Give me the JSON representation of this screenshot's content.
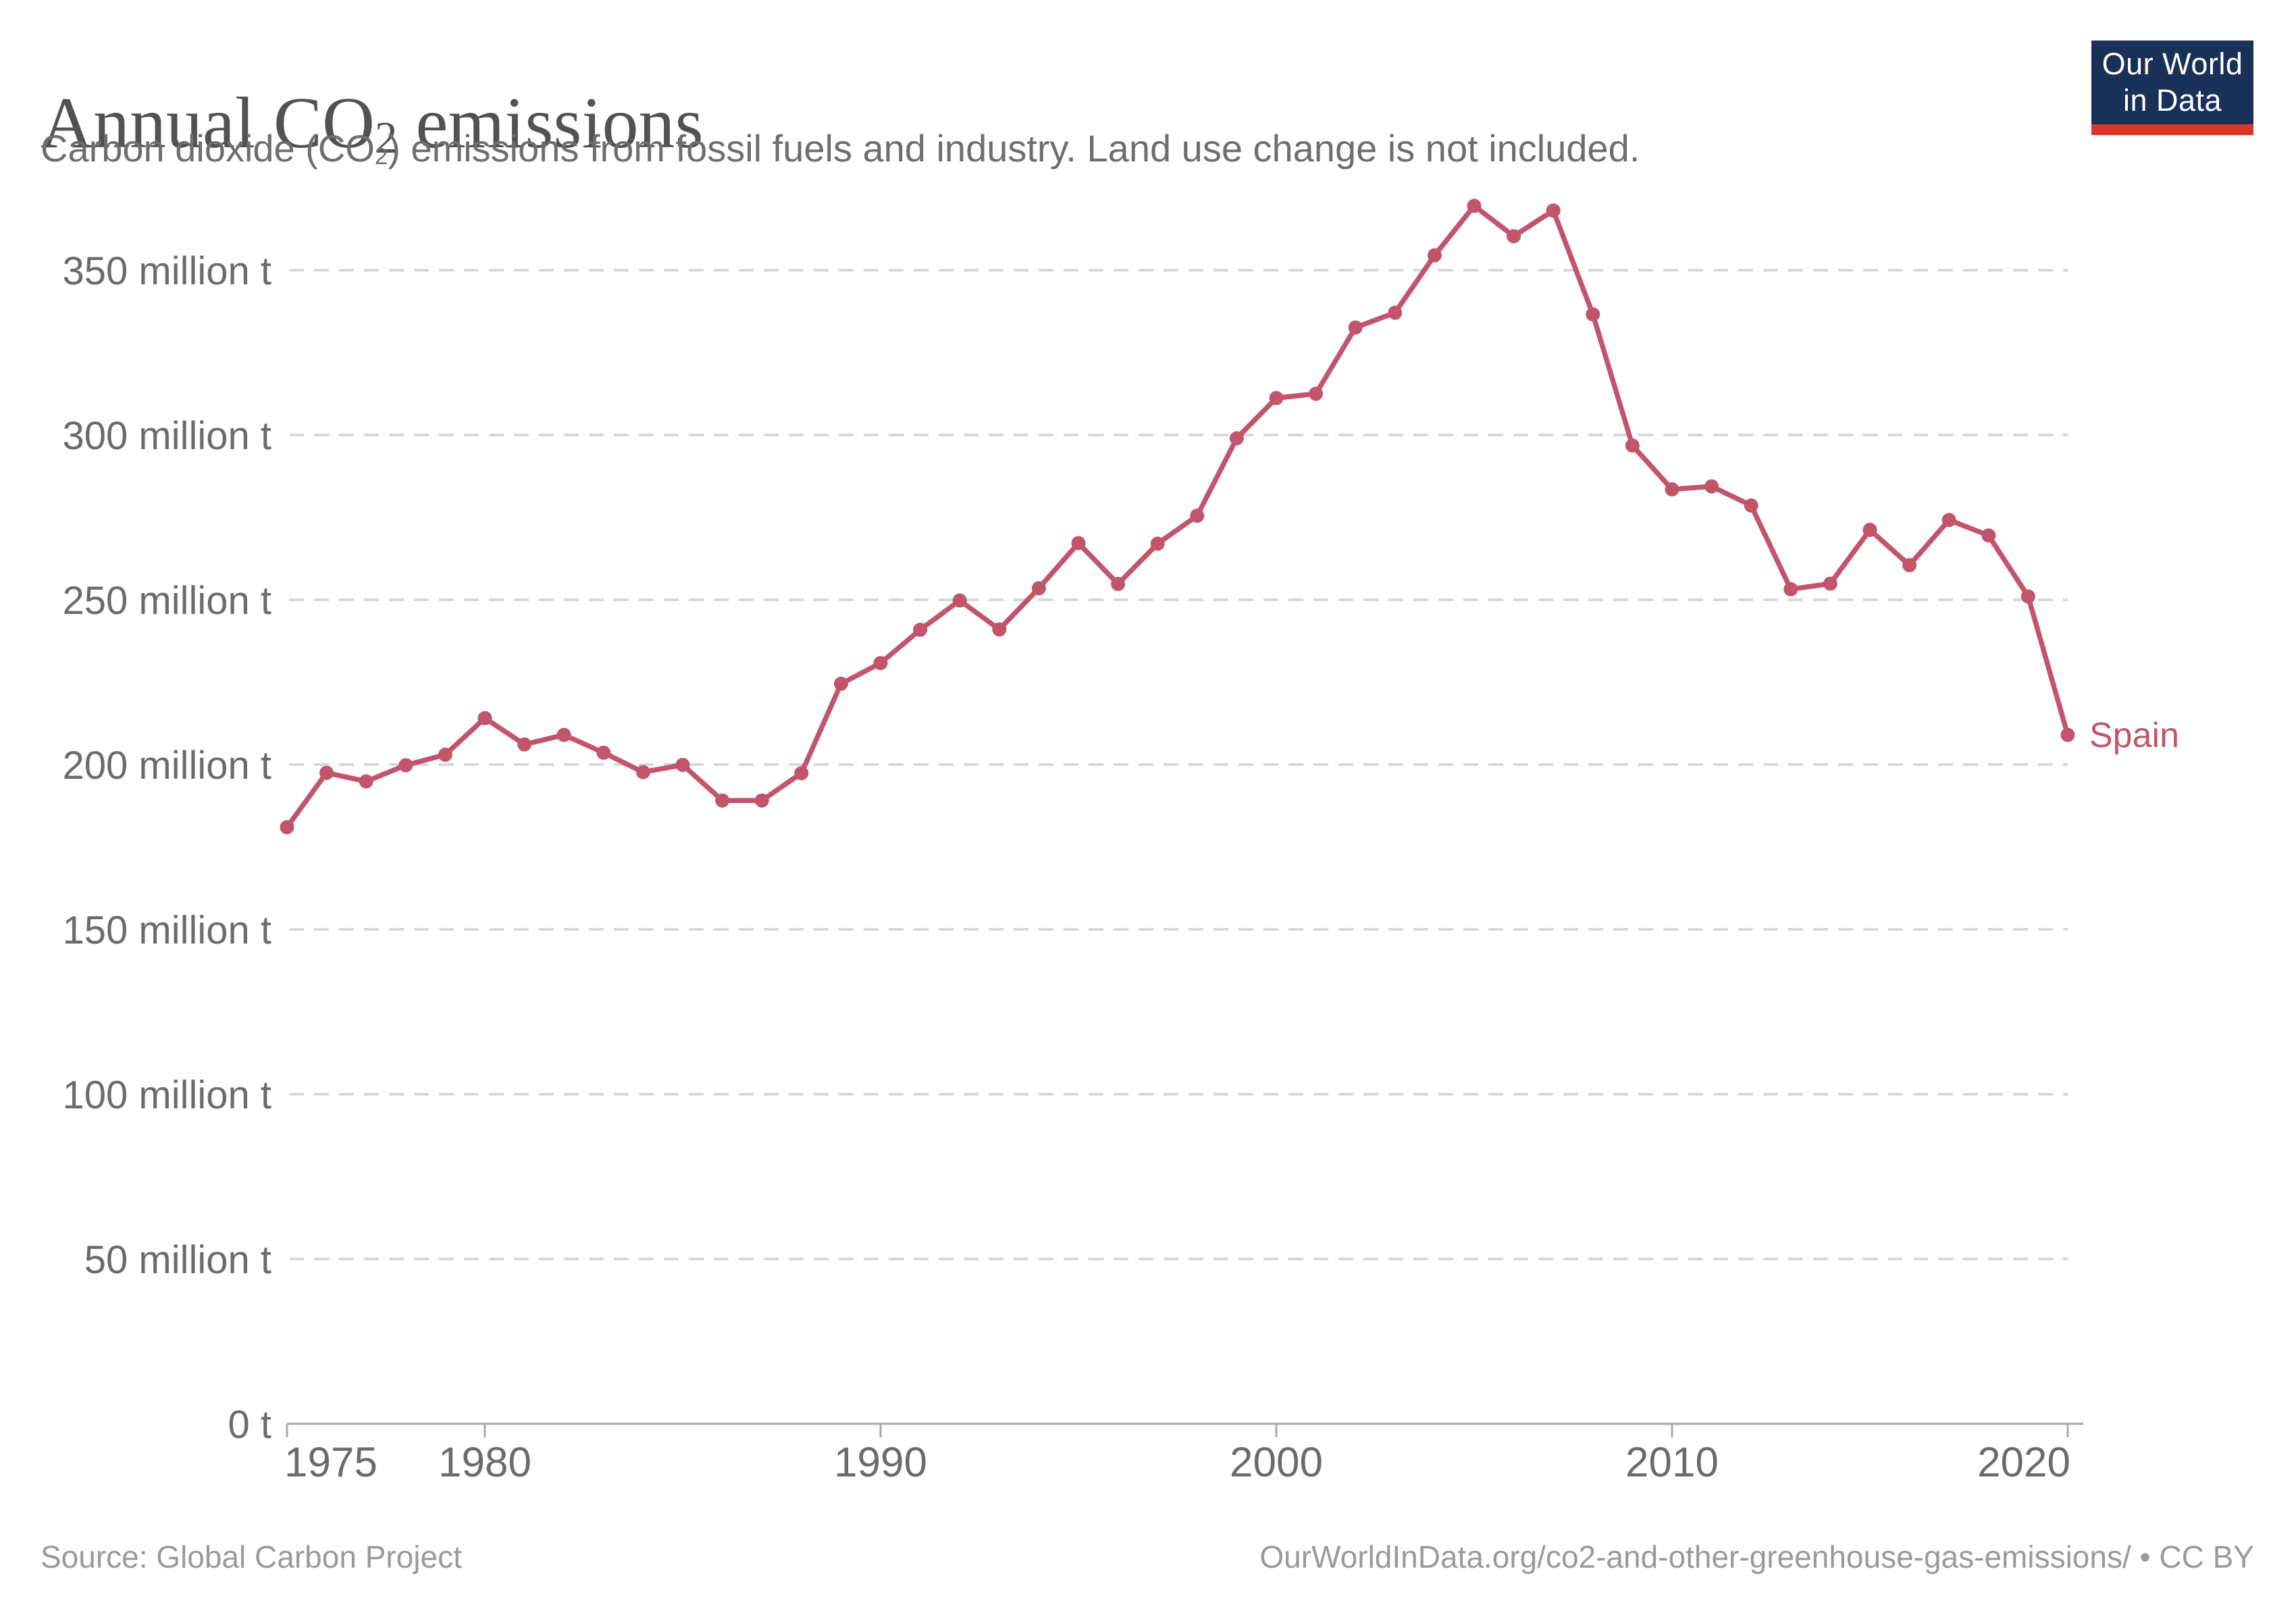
{
  "header": {
    "title_pre": "Annual CO",
    "title_sub": "2",
    "title_post": " emissions",
    "subtitle_pre": "Carbon dioxide (CO",
    "subtitle_sub": "2",
    "subtitle_post": ") emissions from fossil fuels and industry. Land use change is not included."
  },
  "logo": {
    "line1": "Our World",
    "line2": "in Data",
    "bg_color": "#1a3157",
    "bar_color": "#dc362b",
    "text_color": "#ffffff"
  },
  "footer": {
    "source": "Source: Global Carbon Project",
    "attribution": "OurWorldInData.org/co2-and-other-greenhouse-gas-emissions/ • CC BY"
  },
  "colors": {
    "line": "#c2556b",
    "grid": "#d8d8d8",
    "axis": "#a8a8a8",
    "tick_label": "#6b6b6b",
    "title": "#525252",
    "subtitle": "#6e6e6e",
    "footer_text": "#9a9a9a"
  },
  "chart_data": {
    "type": "line",
    "title": "Annual CO₂ emissions",
    "subtitle": "Carbon dioxide (CO₂) emissions from fossil fuels and industry. Land use change is not included.",
    "unit": "million t",
    "entity": "Spain",
    "legend_position": "end-of-line label",
    "grid": true,
    "x": [
      1975,
      1976,
      1977,
      1978,
      1979,
      1980,
      1981,
      1982,
      1983,
      1984,
      1985,
      1986,
      1987,
      1988,
      1989,
      1990,
      1991,
      1992,
      1993,
      1994,
      1995,
      1996,
      1997,
      1998,
      1999,
      2000,
      2001,
      2002,
      2003,
      2004,
      2005,
      2006,
      2007,
      2008,
      2009,
      2010,
      2011,
      2012,
      2013,
      2014,
      2015,
      2016,
      2017,
      2018,
      2019,
      2020
    ],
    "series": [
      {
        "name": "Spain",
        "values": [
          181.0,
          197.5,
          194.9,
          199.8,
          203.0,
          214.1,
          206.1,
          209.0,
          203.6,
          197.7,
          199.9,
          189.1,
          189.1,
          197.4,
          224.5,
          230.8,
          240.9,
          249.8,
          241.0,
          253.5,
          267.2,
          254.8,
          267.0,
          275.5,
          299.0,
          311.2,
          312.5,
          332.6,
          337.1,
          354.5,
          369.5,
          360.3,
          368.1,
          336.6,
          296.8,
          283.5,
          284.4,
          278.6,
          253.2,
          254.9,
          271.2,
          260.5,
          274.2,
          269.5,
          251.0,
          209.0
        ]
      }
    ],
    "x_axis": {
      "range": [
        1975,
        2020
      ],
      "ticks": [
        {
          "value": 1975,
          "label": "1975",
          "anchor": "start"
        },
        {
          "value": 1980,
          "label": "1980",
          "anchor": "middle"
        },
        {
          "value": 1990,
          "label": "1990",
          "anchor": "middle"
        },
        {
          "value": 2000,
          "label": "2000",
          "anchor": "middle"
        },
        {
          "value": 2010,
          "label": "2010",
          "anchor": "middle"
        },
        {
          "value": 2020,
          "label": "2020",
          "anchor": "end"
        }
      ]
    },
    "y_axis": {
      "range": [
        0,
        375
      ],
      "ticks": [
        {
          "value": 0,
          "label": "0 t"
        },
        {
          "value": 50,
          "label": "50 million t"
        },
        {
          "value": 100,
          "label": "100 million t"
        },
        {
          "value": 150,
          "label": "150 million t"
        },
        {
          "value": 200,
          "label": "200 million t"
        },
        {
          "value": 250,
          "label": "250 million t"
        },
        {
          "value": 300,
          "label": "300 million t"
        },
        {
          "value": 350,
          "label": "350 million t"
        }
      ]
    }
  }
}
